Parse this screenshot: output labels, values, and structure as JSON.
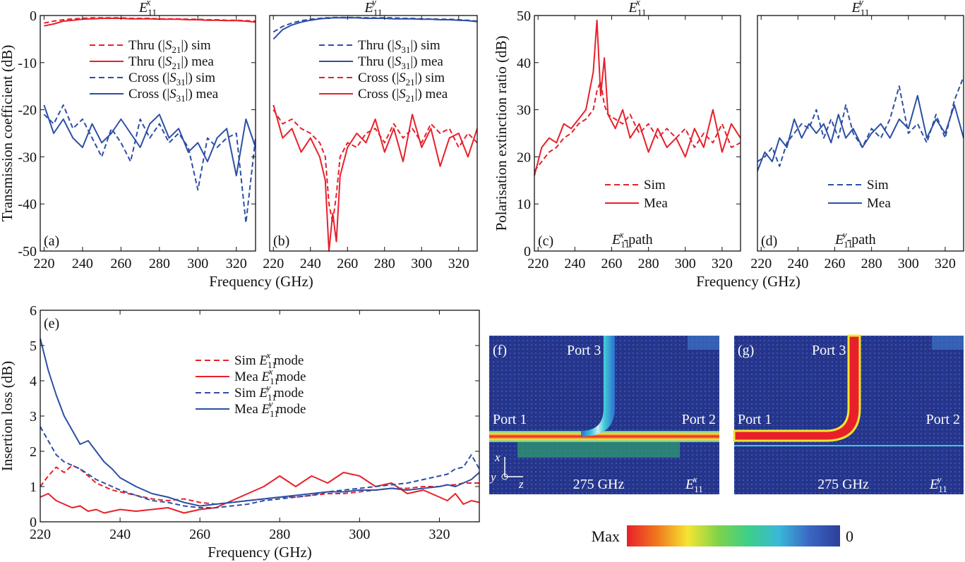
{
  "colors": {
    "red": "#e8202a",
    "blue": "#2c4fa5",
    "axis": "#111111"
  },
  "chart_data": [
    {
      "id": "a",
      "type": "line",
      "panel_label": "(a)",
      "title": {
        "base": "E",
        "sub": "11",
        "sup": "x"
      },
      "xlabel": "Frequency (GHz)",
      "ylabel": "Transmission coefficient (dB)",
      "xlim": [
        218,
        330
      ],
      "ylim": [
        -50,
        0
      ],
      "xticks": [
        220,
        240,
        260,
        280,
        300,
        320
      ],
      "yticks": [
        0,
        -10,
        -20,
        -30,
        -40,
        -50
      ],
      "x": [
        220,
        225,
        230,
        235,
        240,
        245,
        250,
        255,
        260,
        265,
        270,
        275,
        280,
        285,
        290,
        295,
        300,
        305,
        310,
        315,
        320,
        325,
        330
      ],
      "legend": {
        "position": "upper-middle"
      },
      "series": [
        {
          "name": "Thru (|S21|) sim",
          "label": {
            "pre": "Thru (|",
            "s": "S",
            "sub": "21",
            "post": "|) sim"
          },
          "color": "red",
          "dash": true,
          "values": [
            -1.6,
            -1.2,
            -0.9,
            -0.7,
            -0.6,
            -0.5,
            -0.5,
            -0.5,
            -0.5,
            -0.6,
            -0.6,
            -0.6,
            -0.7,
            -0.7,
            -0.7,
            -0.8,
            -0.8,
            -0.9,
            -0.9,
            -1.0,
            -1.0,
            -1.1,
            -1.2
          ]
        },
        {
          "name": "Thru (|S21|) mea",
          "label": {
            "pre": "Thru (|",
            "s": "S",
            "sub": "21",
            "post": "|) mea"
          },
          "color": "red",
          "dash": false,
          "values": [
            -2.2,
            -1.8,
            -1.2,
            -1.0,
            -0.8,
            -0.7,
            -0.6,
            -0.6,
            -0.6,
            -0.7,
            -0.7,
            -0.7,
            -0.8,
            -0.8,
            -0.8,
            -0.9,
            -0.9,
            -1.0,
            -1.0,
            -1.1,
            -1.1,
            -1.2,
            -1.4
          ]
        },
        {
          "name": "Cross (|S31|) sim",
          "label": {
            "pre": "Cross (|",
            "s": "S",
            "sub": "31",
            "post": "|) sim"
          },
          "color": "blue",
          "dash": true,
          "values": [
            -21,
            -23,
            -19,
            -24,
            -22,
            -26,
            -30,
            -24,
            -27,
            -31,
            -22,
            -26,
            -23,
            -27,
            -25,
            -28,
            -37,
            -26,
            -28,
            -26,
            -25,
            -44,
            -26
          ]
        },
        {
          "name": "Cross (|S31|) mea",
          "label": {
            "pre": "Cross (|",
            "s": "S",
            "sub": "31",
            "post": "|) mea"
          },
          "color": "blue",
          "dash": false,
          "values": [
            -19,
            -25,
            -22,
            -26,
            -28,
            -23,
            -27,
            -25,
            -22,
            -25,
            -28,
            -23,
            -21,
            -26,
            -24,
            -29,
            -27,
            -31,
            -26,
            -24,
            -34,
            -22,
            -28
          ]
        }
      ]
    },
    {
      "id": "b",
      "type": "line",
      "panel_label": "(b)",
      "title": {
        "base": "E",
        "sub": "11",
        "sup": "y"
      },
      "xlabel": "",
      "ylabel": "",
      "xlim": [
        218,
        330
      ],
      "ylim": [
        -50,
        0
      ],
      "xticks": [
        220,
        240,
        260,
        280,
        300,
        320
      ],
      "yticks": [],
      "x": [
        220,
        225,
        230,
        235,
        240,
        245,
        248,
        250,
        252,
        254,
        256,
        260,
        265,
        270,
        275,
        280,
        285,
        290,
        295,
        300,
        305,
        310,
        315,
        320,
        325,
        330
      ],
      "legend": {
        "position": "upper-middle"
      },
      "series": [
        {
          "name": "Thru (|S31|) sim",
          "label": {
            "pre": "Thru (|",
            "s": "S",
            "sub": "31",
            "post": "|) sim"
          },
          "color": "blue",
          "dash": true,
          "values": [
            -3.5,
            -2.3,
            -1.6,
            -1.1,
            -0.8,
            -0.6,
            -0.5,
            -0.5,
            -0.4,
            -0.4,
            -0.4,
            -0.4,
            -0.4,
            -0.5,
            -0.5,
            -0.5,
            -0.5,
            -0.6,
            -0.6,
            -0.7,
            -0.7,
            -0.8,
            -0.8,
            -0.9,
            -1.0,
            -1.2
          ]
        },
        {
          "name": "Thru (|S31|) mea",
          "label": {
            "pre": "Thru (|",
            "s": "S",
            "sub": "31",
            "post": "|) mea"
          },
          "color": "blue",
          "dash": false,
          "values": [
            -5.0,
            -3.0,
            -2.0,
            -1.4,
            -1.0,
            -0.7,
            -0.6,
            -0.6,
            -0.5,
            -0.5,
            -0.5,
            -0.5,
            -0.5,
            -0.6,
            -0.6,
            -0.6,
            -0.7,
            -0.7,
            -0.7,
            -0.8,
            -0.8,
            -0.9,
            -0.9,
            -1.0,
            -1.1,
            -1.3
          ]
        },
        {
          "name": "Cross (|S21|) sim",
          "label": {
            "pre": "Cross (|",
            "s": "S",
            "sub": "21",
            "post": "|) sim"
          },
          "color": "red",
          "dash": true,
          "values": [
            -20,
            -23,
            -22,
            -24,
            -25,
            -27,
            -30,
            -40,
            -44,
            -38,
            -30,
            -27,
            -28,
            -25,
            -24,
            -27,
            -23,
            -26,
            -24,
            -27,
            -23,
            -25,
            -24,
            -28,
            -25,
            -27
          ]
        },
        {
          "name": "Cross (|S21|) mea",
          "label": {
            "pre": "Cross (|",
            "s": "S",
            "sub": "21",
            "post": "|) mea"
          },
          "color": "red",
          "dash": false,
          "values": [
            -19,
            -26,
            -24,
            -29,
            -26,
            -30,
            -35,
            -50,
            -42,
            -48,
            -34,
            -28,
            -25,
            -27,
            -22,
            -29,
            -24,
            -31,
            -21,
            -28,
            -24,
            -32,
            -26,
            -25,
            -30,
            -24
          ]
        }
      ]
    },
    {
      "id": "c",
      "type": "line",
      "panel_label": "(c)",
      "title": {
        "base": "E",
        "sub": "11",
        "sup": "x"
      },
      "xlabel": "Frequency (GHz)",
      "ylabel": "Polarisation extinction ratio (dB)",
      "xlim": [
        218,
        330
      ],
      "ylim": [
        0,
        50
      ],
      "xticks": [
        220,
        240,
        260,
        280,
        300,
        320
      ],
      "yticks": [
        0,
        10,
        20,
        30,
        40,
        50
      ],
      "x": [
        218,
        222,
        226,
        230,
        234,
        238,
        242,
        246,
        250,
        252,
        254,
        256,
        258,
        262,
        266,
        270,
        275,
        280,
        285,
        290,
        295,
        300,
        305,
        310,
        315,
        320,
        325,
        330
      ],
      "legend": {
        "position": "lower-middle"
      },
      "path_note": {
        "base": "E",
        "sub": "11",
        "sup": "x",
        "suffix": "-path"
      },
      "series": [
        {
          "name": "Sim",
          "label": {
            "pre": "Sim"
          },
          "color": "red",
          "dash": true,
          "values": [
            17,
            19,
            21,
            22,
            24,
            25,
            27,
            28,
            30,
            34,
            36,
            31,
            29,
            28,
            27,
            29,
            25,
            27,
            24,
            26,
            24,
            26,
            22,
            25,
            23,
            27,
            22,
            23
          ]
        },
        {
          "name": "Mea",
          "label": {
            "pre": "Mea"
          },
          "color": "red",
          "dash": false,
          "values": [
            16,
            22,
            24,
            23,
            27,
            26,
            28,
            30,
            38,
            49,
            33,
            41,
            29,
            26,
            30,
            24,
            27,
            21,
            26,
            22,
            24,
            20,
            26,
            22,
            30,
            21,
            27,
            24
          ]
        }
      ]
    },
    {
      "id": "d",
      "type": "line",
      "panel_label": "(d)",
      "title": {
        "base": "E",
        "sub": "11",
        "sup": "y"
      },
      "xlabel": "",
      "ylabel": "",
      "xlim": [
        218,
        330
      ],
      "ylim": [
        0,
        50
      ],
      "xticks": [
        220,
        240,
        260,
        280,
        300,
        320
      ],
      "yticks": [],
      "x": [
        218,
        222,
        226,
        230,
        234,
        238,
        242,
        246,
        250,
        254,
        258,
        262,
        266,
        270,
        275,
        280,
        285,
        290,
        295,
        300,
        305,
        310,
        315,
        320,
        325,
        330
      ],
      "legend": {
        "position": "lower-middle"
      },
      "path_note": {
        "base": "E",
        "sub": "11",
        "sup": "y",
        "suffix": "-path"
      },
      "series": [
        {
          "name": "Sim",
          "label": {
            "pre": "Sim"
          },
          "color": "blue",
          "dash": true,
          "values": [
            19,
            20,
            22,
            18,
            23,
            25,
            27,
            26,
            30,
            24,
            28,
            24,
            31,
            25,
            22,
            26,
            24,
            28,
            35,
            25,
            27,
            23,
            29,
            24,
            32,
            37
          ]
        },
        {
          "name": "Mea",
          "label": {
            "pre": "Mea"
          },
          "color": "blue",
          "dash": false,
          "values": [
            17,
            21,
            19,
            24,
            22,
            28,
            24,
            27,
            25,
            27,
            23,
            29,
            24,
            26,
            22,
            25,
            27,
            24,
            28,
            26,
            33,
            24,
            28,
            25,
            31,
            24
          ]
        }
      ]
    },
    {
      "id": "e",
      "type": "line",
      "panel_label": "(e)",
      "xlabel": "Frequency (GHz)",
      "ylabel": "Insertion loss (dB)",
      "xlim": [
        220,
        330
      ],
      "ylim": [
        0,
        6
      ],
      "xticks": [
        220,
        240,
        260,
        280,
        300,
        320
      ],
      "yticks": [
        0,
        1,
        2,
        3,
        4,
        5,
        6
      ],
      "x": [
        220,
        222,
        224,
        226,
        228,
        230,
        232,
        234,
        236,
        238,
        240,
        244,
        248,
        252,
        256,
        260,
        264,
        268,
        272,
        276,
        280,
        284,
        288,
        292,
        296,
        300,
        304,
        308,
        312,
        316,
        320,
        322,
        324,
        326,
        328,
        330
      ],
      "legend": {
        "position": "center"
      },
      "series": [
        {
          "name": "Sim E11x mode",
          "label": {
            "pre": "Sim ",
            "e": {
              "base": "E",
              "sub": "11",
              "sup": "x"
            },
            "post": " mode"
          },
          "color": "red",
          "dash": true,
          "values": [
            1.0,
            1.3,
            1.55,
            1.4,
            1.6,
            1.5,
            1.3,
            1.1,
            1.0,
            0.9,
            0.85,
            0.75,
            0.65,
            0.6,
            0.65,
            0.55,
            0.5,
            0.55,
            0.6,
            0.65,
            0.7,
            0.7,
            0.75,
            0.8,
            0.8,
            0.85,
            0.9,
            0.95,
            0.95,
            1.0,
            1.0,
            1.05,
            1.05,
            1.1,
            1.1,
            1.1
          ]
        },
        {
          "name": "Mea E11x mode",
          "label": {
            "pre": "Mea ",
            "e": {
              "base": "E",
              "sub": "11",
              "sup": "x"
            },
            "post": " mode"
          },
          "color": "red",
          "dash": false,
          "values": [
            0.7,
            0.8,
            0.6,
            0.5,
            0.4,
            0.45,
            0.3,
            0.35,
            0.25,
            0.3,
            0.35,
            0.3,
            0.35,
            0.4,
            0.25,
            0.35,
            0.4,
            0.6,
            0.8,
            1.0,
            1.3,
            1.0,
            1.3,
            1.1,
            1.4,
            1.3,
            1.0,
            1.1,
            0.8,
            0.9,
            0.7,
            0.6,
            0.8,
            0.5,
            0.6,
            0.55
          ]
        },
        {
          "name": "Sim E11y mode",
          "label": {
            "pre": "Sim ",
            "e": {
              "base": "E",
              "sub": "11",
              "sup": "y"
            },
            "post": " mode"
          },
          "color": "blue",
          "dash": true,
          "values": [
            2.7,
            2.3,
            1.9,
            1.7,
            1.6,
            1.5,
            1.35,
            1.2,
            1.1,
            1.0,
            0.9,
            0.75,
            0.6,
            0.55,
            0.45,
            0.4,
            0.4,
            0.45,
            0.5,
            0.6,
            0.65,
            0.7,
            0.75,
            0.85,
            0.9,
            0.95,
            1.0,
            1.05,
            1.1,
            1.2,
            1.3,
            1.35,
            1.5,
            1.55,
            1.9,
            1.5
          ]
        },
        {
          "name": "Mea E11y mode",
          "label": {
            "pre": "Mea ",
            "e": {
              "base": "E",
              "sub": "11",
              "sup": "y"
            },
            "post": " mode"
          },
          "color": "blue",
          "dash": false,
          "values": [
            5.2,
            4.3,
            3.6,
            3.0,
            2.6,
            2.2,
            2.3,
            2.0,
            1.7,
            1.5,
            1.25,
            1.0,
            0.8,
            0.7,
            0.55,
            0.45,
            0.5,
            0.55,
            0.6,
            0.65,
            0.7,
            0.75,
            0.8,
            0.85,
            0.85,
            0.9,
            0.9,
            0.95,
            0.9,
            0.95,
            1.0,
            1.05,
            1.0,
            1.1,
            1.2,
            1.4
          ]
        }
      ]
    }
  ],
  "field_maps": [
    {
      "panel_label": "(f)",
      "port_top": "Port 3",
      "port_left": "Port 1",
      "port_right": "Port 2",
      "frequency": "275 GHz",
      "mode": {
        "base": "E",
        "sub": "11",
        "sup": "x"
      },
      "axis_x": "x",
      "axis_y": "y",
      "axis_z": "z"
    },
    {
      "panel_label": "(g)",
      "port_top": "Port 3",
      "port_left": "Port 1",
      "port_right": "Port 2",
      "frequency": "275 GHz",
      "mode": {
        "base": "E",
        "sub": "11",
        "sup": "y"
      }
    }
  ],
  "colorbar": {
    "max_label": "Max",
    "min_label": "0",
    "stops": [
      "#e8202a",
      "#f07a1e",
      "#f5e532",
      "#7ed34a",
      "#3ccf8a",
      "#3ab7d8",
      "#3b66c4",
      "#2c3f9a"
    ]
  }
}
